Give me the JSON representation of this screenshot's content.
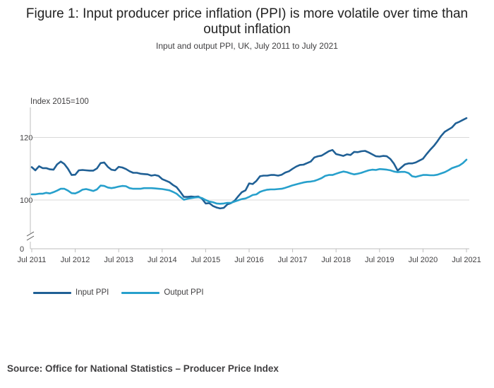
{
  "title_line1": "Figure 1: Input producer price inflation (PPI) is more volatile over time than",
  "title_line2": "output inflation",
  "subtitle": "Input and output PPI, UK, July 2011 to July 2021",
  "source": "Source: Office for National Statistics – Producer Price Index",
  "colors": {
    "input": "#206095",
    "output": "#27a0cc",
    "grid": "#d9d9d9",
    "axis": "#bebebe"
  },
  "chart_data": {
    "type": "line",
    "unit_label": "Index 2015=100",
    "x_start": "2011-07",
    "x_end": "2021-07",
    "x_ticks": [
      "Jul 2011",
      "Jul 2012",
      "Jul 2013",
      "Jul 2014",
      "Jul 2015",
      "Jul 2016",
      "Jul 2017",
      "Jul 2018",
      "Jul 2019",
      "Jul 2020",
      "Jul 2021"
    ],
    "y_ticks": [
      0,
      100,
      120
    ],
    "y_axis_break": true,
    "grid": true,
    "legend_position": "bottom-left",
    "series": [
      {
        "name": "Input PPI",
        "key": "input",
        "points": [
          [
            "2011-07",
            110.5
          ],
          [
            "2011-08",
            109.5
          ],
          [
            "2011-09",
            110.8
          ],
          [
            "2011-10",
            110.2
          ],
          [
            "2011-11",
            110.2
          ],
          [
            "2011-12",
            109.8
          ],
          [
            "2012-01",
            109.7
          ],
          [
            "2012-02",
            111.4
          ],
          [
            "2012-03",
            112.3
          ],
          [
            "2012-04",
            111.5
          ],
          [
            "2012-05",
            110.0
          ],
          [
            "2012-06",
            108.0
          ],
          [
            "2012-07",
            108.1
          ],
          [
            "2012-08",
            109.5
          ],
          [
            "2012-09",
            109.6
          ],
          [
            "2012-10",
            109.5
          ],
          [
            "2012-11",
            109.4
          ],
          [
            "2012-12",
            109.4
          ],
          [
            "2013-01",
            110.1
          ],
          [
            "2013-02",
            111.8
          ],
          [
            "2013-03",
            112.0
          ],
          [
            "2013-04",
            110.6
          ],
          [
            "2013-05",
            109.7
          ],
          [
            "2013-06",
            109.5
          ],
          [
            "2013-07",
            110.6
          ],
          [
            "2013-08",
            110.4
          ],
          [
            "2013-09",
            109.9
          ],
          [
            "2013-10",
            109.2
          ],
          [
            "2013-11",
            108.7
          ],
          [
            "2013-12",
            108.7
          ],
          [
            "2014-01",
            108.4
          ],
          [
            "2014-02",
            108.3
          ],
          [
            "2014-03",
            108.2
          ],
          [
            "2014-04",
            107.8
          ],
          [
            "2014-05",
            108.0
          ],
          [
            "2014-06",
            107.7
          ],
          [
            "2014-07",
            106.7
          ],
          [
            "2014-08",
            106.2
          ],
          [
            "2014-09",
            105.7
          ],
          [
            "2014-10",
            104.8
          ],
          [
            "2014-11",
            104.1
          ],
          [
            "2014-12",
            102.6
          ],
          [
            "2015-01",
            101.0
          ],
          [
            "2015-02",
            101.0
          ],
          [
            "2015-03",
            101.1
          ],
          [
            "2015-04",
            101.0
          ],
          [
            "2015-05",
            101.1
          ],
          [
            "2015-06",
            100.4
          ],
          [
            "2015-07",
            98.9
          ],
          [
            "2015-08",
            99.0
          ],
          [
            "2015-09",
            98.1
          ],
          [
            "2015-10",
            97.6
          ],
          [
            "2015-11",
            97.3
          ],
          [
            "2015-12",
            97.5
          ],
          [
            "2016-01",
            98.6
          ],
          [
            "2016-02",
            99.0
          ],
          [
            "2016-03",
            99.8
          ],
          [
            "2016-04",
            101.2
          ],
          [
            "2016-05",
            102.5
          ],
          [
            "2016-06",
            103.1
          ],
          [
            "2016-07",
            105.3
          ],
          [
            "2016-08",
            105.1
          ],
          [
            "2016-09",
            106.1
          ],
          [
            "2016-10",
            107.6
          ],
          [
            "2016-11",
            107.8
          ],
          [
            "2016-12",
            107.8
          ],
          [
            "2017-01",
            108.0
          ],
          [
            "2017-02",
            108.0
          ],
          [
            "2017-03",
            107.8
          ],
          [
            "2017-04",
            108.1
          ],
          [
            "2017-05",
            108.8
          ],
          [
            "2017-06",
            109.2
          ],
          [
            "2017-07",
            110.0
          ],
          [
            "2017-08",
            110.7
          ],
          [
            "2017-09",
            111.2
          ],
          [
            "2017-10",
            111.3
          ],
          [
            "2017-11",
            111.8
          ],
          [
            "2017-12",
            112.3
          ],
          [
            "2018-01",
            113.6
          ],
          [
            "2018-02",
            114.0
          ],
          [
            "2018-03",
            114.2
          ],
          [
            "2018-04",
            114.9
          ],
          [
            "2018-05",
            115.6
          ],
          [
            "2018-06",
            116.0
          ],
          [
            "2018-07",
            114.7
          ],
          [
            "2018-08",
            114.4
          ],
          [
            "2018-09",
            114.1
          ],
          [
            "2018-10",
            114.6
          ],
          [
            "2018-11",
            114.4
          ],
          [
            "2018-12",
            115.4
          ],
          [
            "2019-01",
            115.3
          ],
          [
            "2019-02",
            115.6
          ],
          [
            "2019-03",
            115.7
          ],
          [
            "2019-04",
            115.2
          ],
          [
            "2019-05",
            114.6
          ],
          [
            "2019-06",
            114.0
          ],
          [
            "2019-07",
            113.9
          ],
          [
            "2019-08",
            114.1
          ],
          [
            "2019-09",
            114.0
          ],
          [
            "2019-10",
            113.1
          ],
          [
            "2019-11",
            111.6
          ],
          [
            "2019-12",
            109.4
          ],
          [
            "2020-01",
            110.4
          ],
          [
            "2020-02",
            111.4
          ],
          [
            "2020-03",
            111.7
          ],
          [
            "2020-04",
            111.7
          ],
          [
            "2020-05",
            112.0
          ],
          [
            "2020-06",
            112.6
          ],
          [
            "2020-07",
            113.2
          ],
          [
            "2020-08",
            114.7
          ],
          [
            "2020-09",
            116.1
          ],
          [
            "2020-10",
            117.3
          ],
          [
            "2020-11",
            118.8
          ],
          [
            "2020-12",
            120.5
          ],
          [
            "2021-01",
            121.8
          ],
          [
            "2021-02",
            122.5
          ],
          [
            "2021-03",
            123.2
          ],
          [
            "2021-04",
            124.5
          ],
          [
            "2021-05",
            125.0
          ],
          [
            "2021-06",
            125.6
          ],
          [
            "2021-07",
            126.2
          ]
        ]
      },
      {
        "name": "Output PPI",
        "key": "output",
        "points": [
          [
            "2011-07",
            101.8
          ],
          [
            "2011-08",
            101.8
          ],
          [
            "2011-09",
            102.0
          ],
          [
            "2011-10",
            102.0
          ],
          [
            "2011-11",
            102.3
          ],
          [
            "2011-12",
            102.1
          ],
          [
            "2012-01",
            102.5
          ],
          [
            "2012-02",
            103.0
          ],
          [
            "2012-03",
            103.6
          ],
          [
            "2012-04",
            103.6
          ],
          [
            "2012-05",
            103.0
          ],
          [
            "2012-06",
            102.2
          ],
          [
            "2012-07",
            102.1
          ],
          [
            "2012-08",
            102.6
          ],
          [
            "2012-09",
            103.3
          ],
          [
            "2012-10",
            103.5
          ],
          [
            "2012-11",
            103.2
          ],
          [
            "2012-12",
            102.9
          ],
          [
            "2013-01",
            103.4
          ],
          [
            "2013-02",
            104.6
          ],
          [
            "2013-03",
            104.5
          ],
          [
            "2013-04",
            104.0
          ],
          [
            "2013-05",
            103.8
          ],
          [
            "2013-06",
            104.0
          ],
          [
            "2013-07",
            104.3
          ],
          [
            "2013-08",
            104.5
          ],
          [
            "2013-09",
            104.4
          ],
          [
            "2013-10",
            103.8
          ],
          [
            "2013-11",
            103.6
          ],
          [
            "2013-12",
            103.6
          ],
          [
            "2014-01",
            103.6
          ],
          [
            "2014-02",
            103.8
          ],
          [
            "2014-03",
            103.8
          ],
          [
            "2014-04",
            103.8
          ],
          [
            "2014-05",
            103.7
          ],
          [
            "2014-06",
            103.6
          ],
          [
            "2014-07",
            103.5
          ],
          [
            "2014-08",
            103.3
          ],
          [
            "2014-09",
            103.1
          ],
          [
            "2014-10",
            102.6
          ],
          [
            "2014-11",
            102.0
          ],
          [
            "2014-12",
            101.0
          ],
          [
            "2015-01",
            100.1
          ],
          [
            "2015-02",
            100.4
          ],
          [
            "2015-03",
            100.6
          ],
          [
            "2015-04",
            100.8
          ],
          [
            "2015-05",
            100.9
          ],
          [
            "2015-06",
            100.6
          ],
          [
            "2015-07",
            100.0
          ],
          [
            "2015-08",
            99.5
          ],
          [
            "2015-09",
            99.3
          ],
          [
            "2015-10",
            98.9
          ],
          [
            "2015-11",
            98.8
          ],
          [
            "2015-12",
            98.9
          ],
          [
            "2016-01",
            99.1
          ],
          [
            "2016-02",
            99.1
          ],
          [
            "2016-03",
            99.5
          ],
          [
            "2016-04",
            99.9
          ],
          [
            "2016-05",
            100.3
          ],
          [
            "2016-06",
            100.5
          ],
          [
            "2016-07",
            101.0
          ],
          [
            "2016-08",
            101.6
          ],
          [
            "2016-09",
            101.8
          ],
          [
            "2016-10",
            102.6
          ],
          [
            "2016-11",
            103.0
          ],
          [
            "2016-12",
            103.3
          ],
          [
            "2017-01",
            103.4
          ],
          [
            "2017-02",
            103.4
          ],
          [
            "2017-03",
            103.5
          ],
          [
            "2017-04",
            103.6
          ],
          [
            "2017-05",
            103.9
          ],
          [
            "2017-06",
            104.3
          ],
          [
            "2017-07",
            104.7
          ],
          [
            "2017-08",
            105.0
          ],
          [
            "2017-09",
            105.3
          ],
          [
            "2017-10",
            105.6
          ],
          [
            "2017-11",
            105.8
          ],
          [
            "2017-12",
            105.9
          ],
          [
            "2018-01",
            106.1
          ],
          [
            "2018-02",
            106.5
          ],
          [
            "2018-03",
            107.0
          ],
          [
            "2018-04",
            107.7
          ],
          [
            "2018-05",
            108.0
          ],
          [
            "2018-06",
            108.0
          ],
          [
            "2018-07",
            108.4
          ],
          [
            "2018-08",
            108.8
          ],
          [
            "2018-09",
            109.1
          ],
          [
            "2018-10",
            108.9
          ],
          [
            "2018-11",
            108.5
          ],
          [
            "2018-12",
            108.2
          ],
          [
            "2019-01",
            108.4
          ],
          [
            "2019-02",
            108.7
          ],
          [
            "2019-03",
            109.1
          ],
          [
            "2019-04",
            109.5
          ],
          [
            "2019-05",
            109.7
          ],
          [
            "2019-06",
            109.6
          ],
          [
            "2019-07",
            109.9
          ],
          [
            "2019-08",
            109.8
          ],
          [
            "2019-09",
            109.7
          ],
          [
            "2019-10",
            109.5
          ],
          [
            "2019-11",
            109.1
          ],
          [
            "2019-12",
            108.9
          ],
          [
            "2020-01",
            109.0
          ],
          [
            "2020-02",
            109.0
          ],
          [
            "2020-03",
            108.6
          ],
          [
            "2020-04",
            107.6
          ],
          [
            "2020-05",
            107.4
          ],
          [
            "2020-06",
            107.7
          ],
          [
            "2020-07",
            108.0
          ],
          [
            "2020-08",
            108.0
          ],
          [
            "2020-09",
            107.9
          ],
          [
            "2020-10",
            107.9
          ],
          [
            "2020-11",
            108.1
          ],
          [
            "2020-12",
            108.5
          ],
          [
            "2021-01",
            108.9
          ],
          [
            "2021-02",
            109.5
          ],
          [
            "2021-03",
            110.2
          ],
          [
            "2021-04",
            110.6
          ],
          [
            "2021-05",
            111.0
          ],
          [
            "2021-06",
            111.8
          ],
          [
            "2021-07",
            112.9
          ]
        ]
      }
    ]
  }
}
